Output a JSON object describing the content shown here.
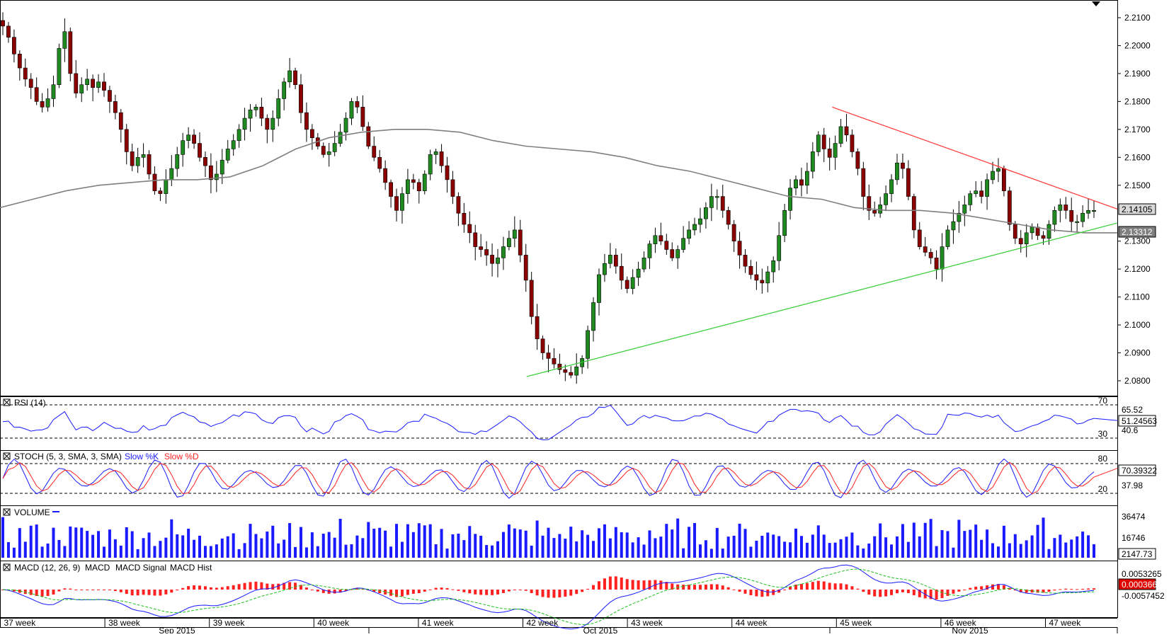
{
  "colors": {
    "candle_up": "#1f8a1f",
    "candle_down": "#8b0000",
    "sma": "#808080",
    "resistance": "#ff3333",
    "support": "#33cc33",
    "rsi": "#1a1aff",
    "stoch_k": "#1a1aff",
    "stoch_d": "#ff2020",
    "volume": "#1a1aff",
    "macd": "#1a1aff",
    "macd_signal": "#20c020",
    "macd_hist": "#ff2020"
  },
  "price_axis": {
    "labels": [
      "2.2100",
      "2.2000",
      "2.1900",
      "2.1800",
      "2.1700",
      "2.1600",
      "2.1500",
      "2.1300",
      "2.1200",
      "2.1100",
      "2.1000",
      "2.0900",
      "2.0800"
    ],
    "last_price": "2.14105",
    "sma_value": "2.13312"
  },
  "rsi": {
    "title": "RSI (14)",
    "levels": [
      "70",
      "30"
    ],
    "axis_labels": [
      "65.52",
      "40.6"
    ],
    "current": "51.24563"
  },
  "stoch": {
    "title": "STOCH (5, 3, SMA, 3, SMA)",
    "legend_k": "Slow %K",
    "legend_d": "Slow %D",
    "levels": [
      "80",
      "20"
    ],
    "axis_labels": [
      "37.98"
    ],
    "current": "70.39322"
  },
  "volume": {
    "title": "VOLUME",
    "axis_labels": [
      "36474",
      "16746"
    ],
    "current": "2147.73"
  },
  "macd": {
    "title": "MACD (12, 26, 9)",
    "legend_macd": "MACD",
    "legend_signal": "MACD Signal",
    "legend_hist": "MACD Hist",
    "axis_labels": [
      "0.0053265",
      "-0.0057452"
    ],
    "current": "0.0003663"
  },
  "time_axis": {
    "weeks": [
      "37 week",
      "38 week",
      "39 week",
      "40 week",
      "41 week",
      "42 week",
      "43 week",
      "44 week",
      "45 week",
      "46 week",
      "47 week"
    ],
    "months": [
      "Sep 2015",
      "Oct 2015",
      "Nov 2015"
    ]
  },
  "chart_data": {
    "type": "candlestick",
    "series_name": "",
    "y_range": [
      2.078,
      2.213
    ],
    "close_approx": [
      2.207,
      2.203,
      2.197,
      2.192,
      2.188,
      2.185,
      2.18,
      2.178,
      2.181,
      2.186,
      2.199,
      2.205,
      2.19,
      2.183,
      2.186,
      2.188,
      2.185,
      2.187,
      2.184,
      2.18,
      2.176,
      2.17,
      2.162,
      2.157,
      2.16,
      2.161,
      2.154,
      2.148,
      2.147,
      2.152,
      2.156,
      2.161,
      2.166,
      2.168,
      2.165,
      2.16,
      2.157,
      2.152,
      2.154,
      2.159,
      2.163,
      2.166,
      2.17,
      2.174,
      2.177,
      2.178,
      2.174,
      2.17,
      2.174,
      2.181,
      2.187,
      2.191,
      2.186,
      2.176,
      2.17,
      2.167,
      2.164,
      2.161,
      2.162,
      2.165,
      2.169,
      2.174,
      2.18,
      2.178,
      2.171,
      2.164,
      2.16,
      2.156,
      2.151,
      2.146,
      2.141,
      2.147,
      2.152,
      2.151,
      2.148,
      2.154,
      2.161,
      2.162,
      2.157,
      2.152,
      2.146,
      2.14,
      2.136,
      2.133,
      2.128,
      2.127,
      2.125,
      2.122,
      2.124,
      2.128,
      2.131,
      2.134,
      2.125,
      2.116,
      2.103,
      2.095,
      2.09,
      2.088,
      2.086,
      2.084,
      2.083,
      2.082,
      2.085,
      2.088,
      2.098,
      2.108,
      2.118,
      2.122,
      2.125,
      2.121,
      2.116,
      2.113,
      2.117,
      2.12,
      2.124,
      2.129,
      2.132,
      2.13,
      2.127,
      2.124,
      2.127,
      2.131,
      2.134,
      2.136,
      2.138,
      2.142,
      2.146,
      2.146,
      2.141,
      2.136,
      2.13,
      2.125,
      2.121,
      2.118,
      2.116,
      2.115,
      2.119,
      2.123,
      2.132,
      2.141,
      2.149,
      2.152,
      2.15,
      2.155,
      2.162,
      2.168,
      2.163,
      2.16,
      2.165,
      2.171,
      2.168,
      2.162,
      2.156,
      2.146,
      2.141,
      2.14,
      2.143,
      2.147,
      2.152,
      2.158,
      2.156,
      2.146,
      2.134,
      2.128,
      2.126,
      2.124,
      2.12,
      2.128,
      2.134,
      2.137,
      2.14,
      2.143,
      2.147,
      2.148,
      2.146,
      2.152,
      2.155,
      2.156,
      2.148,
      2.136,
      2.131,
      2.129,
      2.133,
      2.135,
      2.132,
      2.131,
      2.136,
      2.141,
      2.143,
      2.141,
      2.137,
      2.137,
      2.14,
      2.141,
      2.141
    ],
    "sma_approx": [
      2.142,
      2.145,
      2.148,
      2.15,
      2.151,
      2.152,
      2.152,
      2.153,
      2.157,
      2.163,
      2.167,
      2.169,
      2.17,
      2.17,
      2.169,
      2.166,
      2.164,
      2.163,
      2.162,
      2.16,
      2.157,
      2.155,
      2.152,
      2.149,
      2.146,
      2.145,
      2.142,
      2.141,
      2.141,
      2.14,
      2.138,
      2.136,
      2.134,
      2.133,
      2.133
    ],
    "resistance_line": {
      "from": [
        2.178,
        "2015-11-03"
      ],
      "to": [
        2.1415,
        "2015-11-20"
      ]
    },
    "support_line": {
      "from": [
        2.0815,
        "2015-10-13"
      ],
      "to": [
        2.1365,
        "2015-11-20"
      ]
    }
  }
}
